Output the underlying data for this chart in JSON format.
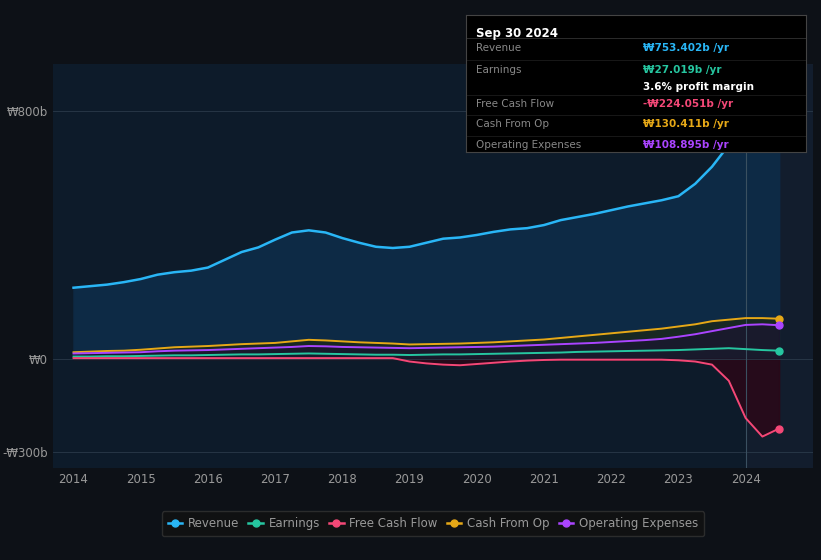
{
  "bg_color": "#0d1117",
  "plot_bg_color": "#0d1b2a",
  "grid_color": "#2a3a4a",
  "text_color": "#999999",
  "title_color": "#ffffff",
  "years": [
    2014.0,
    2014.25,
    2014.5,
    2014.75,
    2015.0,
    2015.25,
    2015.5,
    2015.75,
    2016.0,
    2016.25,
    2016.5,
    2016.75,
    2017.0,
    2017.25,
    2017.5,
    2017.75,
    2018.0,
    2018.25,
    2018.5,
    2018.75,
    2019.0,
    2019.25,
    2019.5,
    2019.75,
    2020.0,
    2020.25,
    2020.5,
    2020.75,
    2021.0,
    2021.25,
    2021.5,
    2021.75,
    2022.0,
    2022.25,
    2022.5,
    2022.75,
    2023.0,
    2023.25,
    2023.5,
    2023.75,
    2024.0,
    2024.25,
    2024.5
  ],
  "revenue": [
    230,
    235,
    240,
    248,
    258,
    272,
    280,
    285,
    295,
    320,
    345,
    360,
    385,
    408,
    415,
    408,
    390,
    375,
    362,
    358,
    362,
    375,
    388,
    392,
    400,
    410,
    418,
    422,
    432,
    448,
    458,
    468,
    480,
    492,
    502,
    512,
    525,
    565,
    620,
    690,
    760,
    778,
    753
  ],
  "earnings": [
    8,
    8,
    9,
    9,
    10,
    11,
    12,
    12,
    13,
    14,
    15,
    15,
    16,
    17,
    18,
    17,
    16,
    15,
    14,
    14,
    13,
    14,
    15,
    15,
    16,
    17,
    18,
    19,
    20,
    21,
    23,
    24,
    25,
    26,
    27,
    28,
    29,
    31,
    33,
    35,
    32,
    29,
    27
  ],
  "free_cash_flow": [
    3,
    3,
    3,
    3,
    3,
    3,
    3,
    3,
    3,
    3,
    3,
    3,
    3,
    3,
    3,
    3,
    3,
    3,
    3,
    3,
    -8,
    -14,
    -18,
    -20,
    -16,
    -12,
    -8,
    -5,
    -3,
    -2,
    -2,
    -2,
    -2,
    -2,
    -2,
    -2,
    -4,
    -8,
    -18,
    -70,
    -190,
    -250,
    -224
  ],
  "cash_from_op": [
    22,
    24,
    26,
    27,
    30,
    34,
    38,
    40,
    42,
    45,
    48,
    50,
    52,
    57,
    62,
    60,
    57,
    54,
    52,
    50,
    47,
    48,
    49,
    50,
    52,
    54,
    57,
    60,
    63,
    68,
    73,
    78,
    83,
    88,
    93,
    98,
    105,
    112,
    122,
    127,
    132,
    132,
    130
  ],
  "operating_expenses": [
    18,
    19,
    20,
    21,
    22,
    25,
    27,
    28,
    29,
    31,
    33,
    35,
    37,
    39,
    42,
    41,
    39,
    38,
    37,
    36,
    35,
    36,
    37,
    38,
    39,
    40,
    42,
    44,
    46,
    48,
    50,
    52,
    55,
    58,
    61,
    65,
    72,
    80,
    90,
    100,
    110,
    112,
    109
  ],
  "revenue_color": "#29b6f6",
  "earnings_color": "#26c6a0",
  "free_cash_flow_color": "#f44877",
  "cash_from_op_color": "#e6a817",
  "operating_expenses_color": "#aa44ff",
  "ylim": [
    -350,
    950
  ],
  "ytick_positions": [
    -300,
    0,
    800
  ],
  "ytick_labels": [
    "-₩300b",
    "₩0",
    "₩800b"
  ],
  "xticks": [
    2014,
    2015,
    2016,
    2017,
    2018,
    2019,
    2020,
    2021,
    2022,
    2023,
    2024
  ],
  "xlim": [
    2013.7,
    2025.0
  ],
  "tooltip_title": "Sep 30 2024",
  "tooltip_revenue_label": "Revenue",
  "tooltip_revenue_value": "₩753.402b /yr",
  "tooltip_earnings_label": "Earnings",
  "tooltip_earnings_value": "₩27.019b /yr",
  "tooltip_profit_margin": "3.6% profit margin",
  "tooltip_fcf_label": "Free Cash Flow",
  "tooltip_fcf_value": "-₩224.051b /yr",
  "tooltip_cashop_label": "Cash From Op",
  "tooltip_cashop_value": "₩130.411b /yr",
  "tooltip_opex_label": "Operating Expenses",
  "tooltip_opex_value": "₩108.895b /yr",
  "legend_items": [
    "Revenue",
    "Earnings",
    "Free Cash Flow",
    "Cash From Op",
    "Operating Expenses"
  ]
}
